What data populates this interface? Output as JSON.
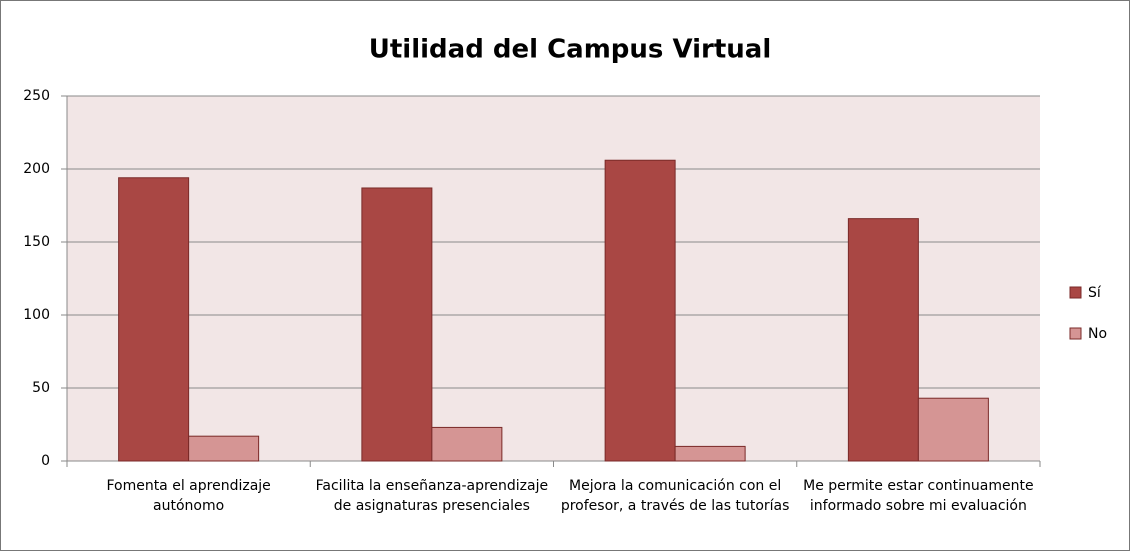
{
  "chart_data": {
    "type": "bar",
    "title": "Utilidad del Campus Virtual",
    "categories": [
      "Fomenta el aprendizaje autónomo",
      "Facilita la enseñanza-aprendizaje de asignaturas presenciales",
      "Mejora la comunicación con el profesor, a través de las tutorías",
      "Me permite estar continuamente informado sobre mi evaluación"
    ],
    "series": [
      {
        "name": "Sí",
        "color": "#a94744",
        "values": [
          194,
          187,
          206,
          166
        ]
      },
      {
        "name": "No",
        "color": "#d59594",
        "values": [
          17,
          23,
          10,
          43
        ]
      }
    ],
    "ylim": [
      0,
      250
    ],
    "yticks": [
      0,
      50,
      100,
      150,
      200,
      250
    ],
    "grid": true,
    "legend": "right"
  }
}
